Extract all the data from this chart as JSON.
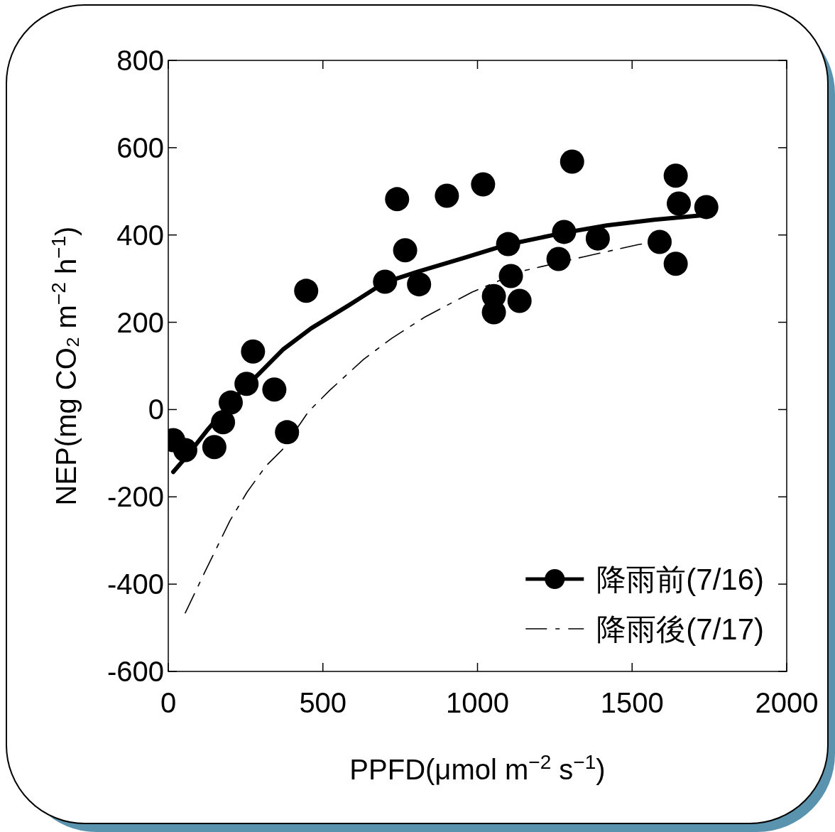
{
  "chart_data": {
    "type": "scatter",
    "xlabel": "PPFD(μmol m$^{−2}$ s$^{−1}$)",
    "ylabel": "NEP(mg CO₂ m$^{−2}$ h$^{−1}$)",
    "xlim": [
      0,
      2000
    ],
    "xticks": [
      0,
      500,
      1000,
      1500,
      2000
    ],
    "ylim": [
      -600,
      800
    ],
    "yticks": [
      -600,
      -400,
      -200,
      0,
      200,
      400,
      600,
      800
    ],
    "grid": false,
    "legend": "bottom right",
    "series": [
      {
        "name": "降雨前(7/16)",
        "color": "#000000",
        "marker": "circle",
        "x": [
          16,
          55,
          149,
          177,
          202,
          253,
          274,
          343,
          384,
          446,
          701,
          740,
          766,
          811,
          901,
          1018,
          1053,
          1053,
          1099,
          1108,
          1136,
          1262,
          1280,
          1306,
          1389,
          1589,
          1641,
          1651,
          1641,
          1740
        ],
        "values": [
          -70,
          -93,
          -86,
          -29,
          16,
          59,
          133,
          46,
          -52,
          272,
          293,
          482,
          365,
          287,
          490,
          516,
          260,
          223,
          379,
          306,
          249,
          345,
          407,
          568,
          392,
          384,
          536,
          472,
          334,
          464
        ]
      },
      {
        "type": "line",
        "color": "#000000",
        "line_style": "solid",
        "marker": "none",
        "x": [
          16,
          55,
          124,
          216,
          292,
          370,
          462,
          584,
          699,
          807,
          959,
          1097,
          1280,
          1418,
          1572,
          1740
        ],
        "values": [
          -143,
          -111,
          -49,
          28,
          81,
          137,
          186,
          239,
          291,
          316,
          348,
          378,
          405,
          422,
          435,
          446
        ]
      },
      {
        "name": "降雨後(7/17)",
        "type": "line",
        "color": "#000000",
        "line_style": "dashed",
        "marker": "none",
        "x": [
          55,
          117,
          200,
          255,
          315,
          370,
          453,
          522,
          630,
          722,
          830,
          982,
          1143,
          1343,
          1520,
          1625
        ],
        "values": [
          -466,
          -374,
          -254,
          -189,
          -130,
          -91,
          -5,
          44,
          114,
          163,
          212,
          269,
          317,
          350,
          378,
          391
        ]
      }
    ]
  }
}
